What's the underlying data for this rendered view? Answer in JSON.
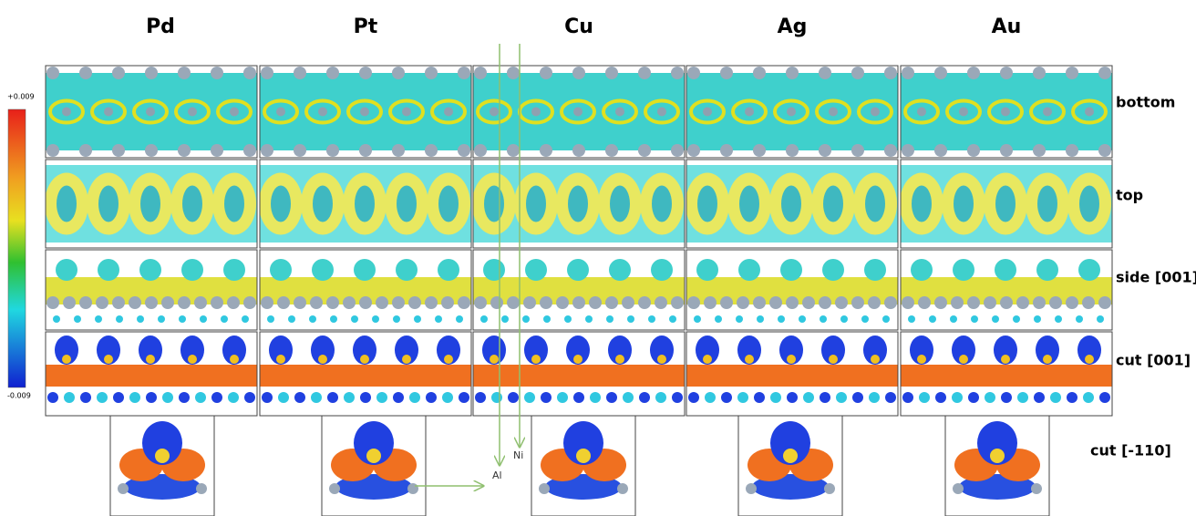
{
  "columns": [
    "Pd",
    "Pt",
    "Cu",
    "Ag",
    "Au"
  ],
  "rows": [
    "bottom",
    "top",
    "side [001]",
    "cut [001]",
    "cut [-110]"
  ],
  "colorbar": {
    "top": "+0.009",
    "bottom": "-0.009"
  },
  "axes": {
    "x": "Al",
    "y": "Ni"
  }
}
